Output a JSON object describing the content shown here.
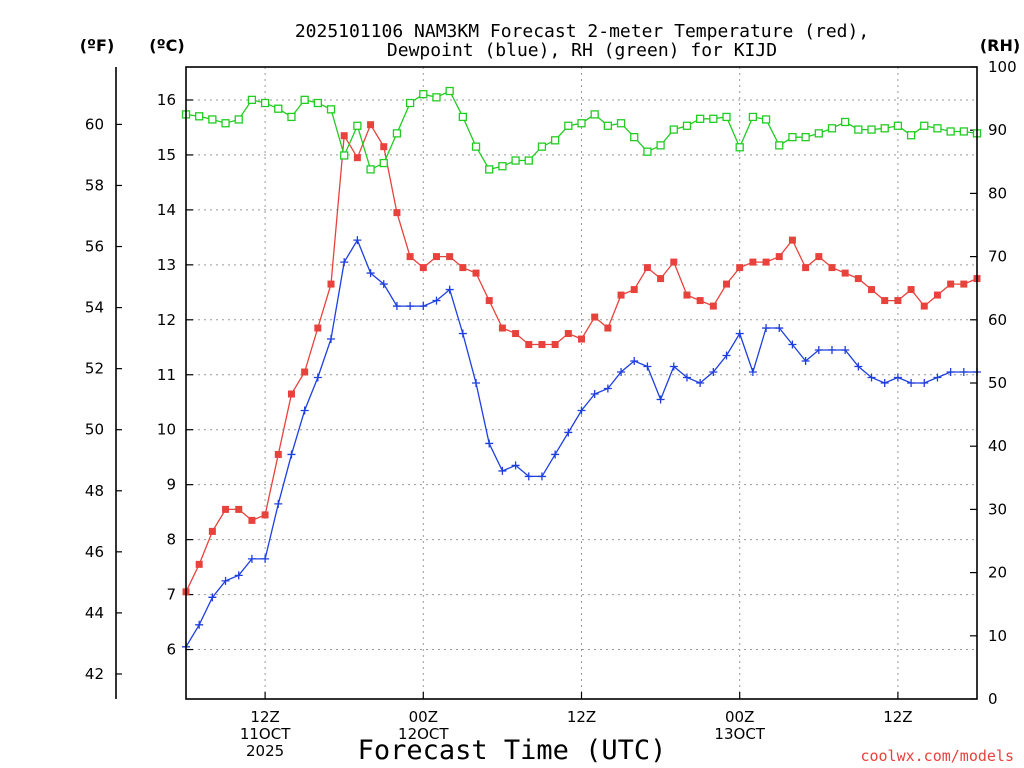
{
  "title": {
    "line1": "2025101106 NAM3KM Forecast 2-meter Temperature (red),",
    "line2": "Dewpoint (blue), RH (green) for KIJD"
  },
  "units": {
    "fahrenheit": "(ºF)",
    "celsius": "(ºC)",
    "rh": "(RH)"
  },
  "credit": "coolwx.com/models",
  "chart_data": {
    "type": "line",
    "title": "2025101106 NAM3KM Forecast 2-meter Temperature (red), Dewpoint (blue), RH (green) for KIJD",
    "xlabel": "Forecast Time (UTC)",
    "x_unit": "forecast hour from 2025-10-11 06Z",
    "xlim": [
      0,
      60
    ],
    "x_ticks": [
      {
        "x": 6,
        "lines": [
          "12Z",
          "11OCT",
          "2025"
        ]
      },
      {
        "x": 18,
        "lines": [
          "00Z",
          "12OCT"
        ]
      },
      {
        "x": 30,
        "lines": [
          "12Z"
        ]
      },
      {
        "x": 42,
        "lines": [
          "00Z",
          "13OCT"
        ]
      },
      {
        "x": 54,
        "lines": [
          "12Z"
        ]
      }
    ],
    "y_celsius": {
      "label": "(ºC)",
      "lim": [
        5.1,
        16.6
      ],
      "ticks": [
        6,
        7,
        8,
        9,
        10,
        11,
        12,
        13,
        14,
        15,
        16
      ]
    },
    "y_fahrenheit": {
      "label": "(ºF)",
      "ticks": [
        42,
        44,
        46,
        48,
        50,
        52,
        54,
        56,
        58,
        60
      ]
    },
    "y_rh": {
      "label": "(RH)",
      "lim": [
        0,
        100
      ],
      "ticks": [
        0,
        10,
        20,
        30,
        40,
        50,
        60,
        70,
        80,
        90,
        100
      ]
    },
    "grid": true,
    "series": [
      {
        "name": "Temperature",
        "color": "#e8423c",
        "marker": "filled-square",
        "axis": "celsius",
        "x": [
          0,
          1,
          2,
          3,
          4,
          5,
          6,
          7,
          8,
          9,
          10,
          11,
          12,
          13,
          14,
          15,
          16,
          17,
          18,
          19,
          20,
          21,
          22,
          23,
          24,
          25,
          26,
          27,
          28,
          29,
          30,
          31,
          32,
          33,
          34,
          35,
          36,
          37,
          38,
          39,
          40,
          41,
          42,
          43,
          44,
          45,
          46,
          47,
          48,
          49,
          50,
          51,
          52,
          53,
          54,
          55,
          56,
          57,
          58,
          59,
          60
        ],
        "values": [
          7.05,
          7.55,
          8.15,
          8.55,
          8.55,
          8.35,
          8.45,
          9.55,
          10.65,
          11.05,
          11.85,
          12.65,
          15.35,
          14.95,
          15.55,
          15.15,
          13.95,
          13.15,
          12.95,
          13.15,
          13.15,
          12.95,
          12.85,
          12.35,
          11.85,
          11.75,
          11.55,
          11.55,
          11.55,
          11.75,
          11.65,
          12.05,
          11.85,
          12.45,
          12.55,
          12.95,
          12.75,
          13.05,
          12.45,
          12.35,
          12.25,
          12.65,
          12.95,
          13.05,
          13.05,
          13.15,
          13.45,
          12.95,
          13.15,
          12.95,
          12.85,
          12.75,
          12.55,
          12.35,
          12.35,
          12.55,
          12.25,
          12.45,
          12.65,
          12.65,
          12.75
        ]
      },
      {
        "name": "Dewpoint",
        "color": "#1e3fe0",
        "marker": "plus",
        "axis": "celsius",
        "x": [
          0,
          1,
          2,
          3,
          4,
          5,
          6,
          7,
          8,
          9,
          10,
          11,
          12,
          13,
          14,
          15,
          16,
          17,
          18,
          19,
          20,
          21,
          22,
          23,
          24,
          25,
          26,
          27,
          28,
          29,
          30,
          31,
          32,
          33,
          34,
          35,
          36,
          37,
          38,
          39,
          40,
          41,
          42,
          43,
          44,
          45,
          46,
          47,
          48,
          49,
          50,
          51,
          52,
          53,
          54,
          55,
          56,
          57,
          58,
          59,
          60
        ],
        "values": [
          6.05,
          6.45,
          6.95,
          7.25,
          7.35,
          7.65,
          7.65,
          8.65,
          9.55,
          10.35,
          10.95,
          11.65,
          13.05,
          13.45,
          12.85,
          12.65,
          12.25,
          12.25,
          12.25,
          12.35,
          12.55,
          11.75,
          10.85,
          9.75,
          9.25,
          9.35,
          9.15,
          9.15,
          9.55,
          9.95,
          10.35,
          10.65,
          10.75,
          11.05,
          11.25,
          11.15,
          10.55,
          11.15,
          10.95,
          10.85,
          11.05,
          11.35,
          11.75,
          11.05,
          11.85,
          11.85,
          11.55,
          11.25,
          11.45,
          11.45,
          11.45,
          11.15,
          10.95,
          10.85,
          10.95,
          10.85,
          10.85,
          10.95,
          11.05,
          11.05,
          11.05
        ]
      },
      {
        "name": "RH",
        "color": "#22cc22",
        "marker": "open-square",
        "axis": "rh",
        "x": [
          0,
          1,
          2,
          3,
          4,
          5,
          6,
          7,
          8,
          9,
          10,
          11,
          12,
          13,
          14,
          15,
          16,
          17,
          18,
          19,
          20,
          21,
          22,
          23,
          24,
          25,
          26,
          27,
          28,
          29,
          30,
          31,
          32,
          33,
          34,
          35,
          36,
          37,
          38,
          39,
          40,
          41,
          42,
          43,
          44,
          45,
          46,
          47,
          48,
          49,
          50,
          51,
          52,
          53,
          54,
          55,
          56,
          57,
          58,
          59,
          60
        ],
        "values": [
          92.5,
          92.2,
          91.7,
          91.1,
          91.7,
          94.8,
          94.3,
          93.4,
          92.1,
          94.8,
          94.3,
          93.3,
          86.0,
          90.7,
          83.8,
          84.8,
          89.5,
          94.3,
          95.7,
          95.2,
          96.2,
          92.1,
          87.4,
          83.8,
          84.3,
          85.2,
          85.2,
          87.4,
          88.4,
          90.7,
          91.1,
          92.5,
          90.7,
          91.1,
          88.9,
          86.6,
          87.6,
          90.1,
          90.7,
          91.8,
          91.8,
          92.1,
          87.3,
          92.1,
          91.7,
          87.6,
          88.9,
          88.9,
          89.5,
          90.3,
          91.3,
          90.1,
          90.1,
          90.3,
          90.7,
          89.2,
          90.7,
          90.3,
          89.8,
          89.8,
          89.5
        ]
      }
    ]
  }
}
